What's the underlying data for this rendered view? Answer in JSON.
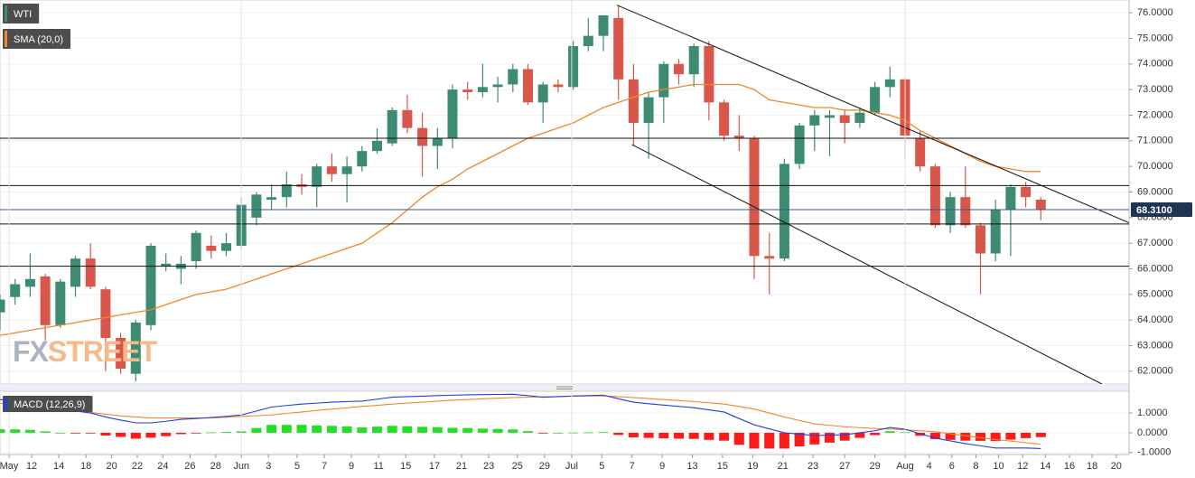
{
  "chart_data": [
    {
      "type": "candlestick",
      "ylim": [
        61.5,
        76.5
      ],
      "xlim": [
        0,
        74.85
      ],
      "yticks": [
        {
          "value": 62,
          "label": "62.0000"
        },
        {
          "value": 63,
          "label": "63.0000"
        },
        {
          "value": 64,
          "label": "64.0000"
        },
        {
          "value": 65,
          "label": "65.0000"
        },
        {
          "value": 66,
          "label": "66.0000"
        },
        {
          "value": 67,
          "label": "67.0000"
        },
        {
          "value": 68,
          "label": "68.0000"
        },
        {
          "value": 69,
          "label": "69.0000"
        },
        {
          "value": 70,
          "label": "70.0000"
        },
        {
          "value": 71,
          "label": "71.0000"
        },
        {
          "value": 72,
          "label": "72.0000"
        },
        {
          "value": 73,
          "label": "73.0000"
        },
        {
          "value": 74,
          "label": "74.0000"
        },
        {
          "value": 75,
          "label": "75.0000"
        },
        {
          "value": 76,
          "label": "76.0000"
        }
      ],
      "x": [
        0,
        1,
        2,
        3,
        4,
        5,
        6,
        7,
        8,
        9,
        10,
        11,
        12,
        13,
        14,
        15,
        16,
        17,
        18,
        19,
        20,
        21,
        22,
        23,
        24,
        25,
        26,
        27,
        28,
        29,
        30,
        31,
        32,
        33,
        34,
        35,
        36,
        37,
        38,
        39,
        40,
        41,
        42,
        43,
        44,
        45,
        46,
        47,
        48,
        49,
        50,
        51,
        52,
        53,
        54,
        55,
        56,
        57,
        58,
        59,
        60,
        61,
        62,
        63,
        64,
        65,
        66,
        67,
        68,
        69
      ],
      "series": [
        {
          "name": "WTI",
          "color": "#3d8b73",
          "up_color": "#3d8b73",
          "down_color": "#d9574a",
          "open": [
            64.3,
            64.9,
            65.3,
            65.7,
            63.8,
            65.3,
            66.4,
            65.2,
            63.3,
            61.9,
            63.8,
            66.1,
            66.0,
            66.3,
            66.9,
            66.7,
            66.9,
            68.0,
            68.7,
            68.8,
            69.3,
            69.2,
            70.0,
            69.7,
            70.0,
            70.6,
            70.9,
            72.2,
            71.5,
            70.8,
            71.1,
            73.0,
            72.9,
            73.1,
            73.2,
            73.8,
            72.5,
            73.2,
            73.1,
            74.7,
            75.1,
            75.8,
            73.4,
            71.7,
            72.7,
            74.0,
            73.6,
            74.7,
            72.5,
            71.2,
            71.1,
            66.5,
            66.4,
            70.1,
            71.6,
            71.9,
            72.0,
            71.7,
            72.1,
            73.1,
            73.4,
            71.1,
            70.0,
            67.7,
            68.8,
            67.7,
            66.6,
            68.3,
            69.2,
            68.7
          ],
          "high": [
            65.0,
            65.6,
            66.6,
            65.8,
            65.6,
            66.5,
            67.0,
            65.3,
            63.5,
            64.0,
            67.0,
            66.6,
            66.5,
            67.5,
            67.3,
            67.4,
            68.8,
            69.0,
            69.3,
            69.8,
            69.7,
            70.1,
            70.5,
            70.4,
            70.8,
            71.5,
            72.3,
            72.8,
            72.1,
            71.5,
            73.2,
            73.3,
            74.0,
            73.5,
            74.0,
            74.0,
            73.3,
            73.4,
            74.9,
            75.8,
            75.9,
            76.3,
            74.0,
            72.9,
            74.1,
            74.2,
            74.8,
            74.9,
            72.6,
            72.0,
            71.2,
            67.4,
            70.3,
            71.7,
            72.2,
            72.2,
            72.2,
            72.3,
            73.3,
            73.9,
            73.5,
            71.4,
            70.1,
            69.0,
            70.0,
            67.8,
            68.7,
            69.3,
            69.4,
            68.8
          ],
          "low": [
            63.6,
            64.6,
            64.9,
            63.2,
            63.7,
            64.9,
            65.2,
            62.0,
            61.9,
            61.6,
            63.6,
            65.9,
            65.4,
            66.0,
            66.4,
            66.5,
            66.8,
            67.7,
            68.3,
            68.4,
            68.9,
            68.4,
            69.4,
            68.6,
            69.8,
            70.5,
            70.8,
            71.3,
            69.6,
            69.9,
            70.7,
            72.6,
            72.7,
            72.5,
            72.9,
            72.4,
            71.7,
            72.9,
            73.0,
            74.5,
            74.5,
            72.6,
            70.8,
            70.3,
            71.7,
            73.2,
            73.1,
            71.8,
            71.0,
            70.6,
            65.6,
            65.0,
            66.3,
            69.9,
            70.6,
            70.4,
            70.9,
            71.5,
            72.0,
            72.7,
            70.3,
            69.8,
            67.6,
            67.4,
            67.6,
            65.0,
            66.3,
            66.5,
            68.4,
            67.9
          ],
          "close": [
            64.8,
            65.4,
            65.6,
            63.8,
            65.5,
            66.4,
            65.3,
            63.3,
            62.1,
            63.9,
            66.9,
            66.2,
            66.2,
            67.4,
            66.7,
            67.0,
            68.5,
            68.9,
            68.8,
            69.3,
            69.2,
            70.0,
            69.7,
            70.0,
            70.6,
            71.0,
            72.2,
            71.5,
            70.8,
            71.1,
            73.0,
            72.9,
            73.1,
            73.2,
            73.8,
            72.5,
            73.2,
            73.1,
            74.7,
            75.1,
            75.9,
            73.4,
            71.7,
            72.7,
            74.0,
            73.6,
            74.7,
            72.5,
            71.2,
            71.1,
            66.5,
            66.4,
            70.1,
            71.6,
            72.0,
            72.0,
            71.7,
            72.1,
            73.1,
            73.4,
            71.2,
            70.0,
            67.7,
            68.8,
            67.7,
            66.6,
            68.3,
            69.2,
            68.8,
            68.3
          ]
        }
      ],
      "overlays": [
        {
          "name": "SMA (20,0)",
          "color": "#f0862a",
          "values": [
            63.4,
            63.5,
            63.6,
            63.7,
            63.8,
            63.9,
            64.0,
            64.1,
            64.2,
            64.3,
            64.4,
            64.6,
            64.8,
            65.0,
            65.1,
            65.2,
            65.4,
            65.6,
            65.8,
            66.0,
            66.2,
            66.4,
            66.6,
            66.8,
            67.0,
            67.4,
            67.8,
            68.3,
            68.8,
            69.2,
            69.5,
            69.9,
            70.2,
            70.5,
            70.8,
            71.1,
            71.3,
            71.5,
            71.7,
            72.0,
            72.3,
            72.5,
            72.7,
            72.9,
            73.0,
            73.1,
            73.2,
            73.2,
            73.2,
            73.2,
            73.0,
            72.6,
            72.5,
            72.4,
            72.3,
            72.3,
            72.2,
            72.2,
            72.1,
            72.0,
            71.8,
            71.4,
            71.1,
            70.8,
            70.5,
            70.2,
            70.0,
            69.9,
            69.8,
            69.8
          ]
        }
      ],
      "levels": [
        71.1,
        69.25,
        67.75,
        66.1
      ],
      "trendlines": [
        {
          "x": [
            40.9,
            74.85
          ],
          "y": [
            76.3,
            67.8
          ]
        },
        {
          "x": [
            41.9,
            73.05
          ],
          "y": [
            70.85,
            61.5
          ]
        }
      ],
      "last_price": {
        "value": 68.31,
        "label": "68.3100"
      },
      "watermark": {
        "left": "FX",
        "right": "STREET"
      }
    },
    {
      "type": "macd",
      "legend": "MACD (12,26,9)",
      "legend_color": "#1f3fe0",
      "ylim": [
        -1.1,
        2.1
      ],
      "xlim": [
        0,
        74.85
      ],
      "yticks": [
        {
          "value": 1,
          "label": "1.0000"
        },
        {
          "value": 0,
          "label": "0.0000"
        },
        {
          "value": -1,
          "label": "-1.0000"
        }
      ],
      "x": [
        0,
        1,
        2,
        3,
        4,
        5,
        6,
        7,
        8,
        9,
        10,
        11,
        12,
        13,
        14,
        15,
        16,
        17,
        18,
        19,
        20,
        21,
        22,
        23,
        24,
        25,
        26,
        27,
        28,
        29,
        30,
        31,
        32,
        33,
        34,
        35,
        36,
        37,
        38,
        39,
        40,
        41,
        42,
        43,
        44,
        45,
        46,
        47,
        48,
        49,
        50,
        51,
        52,
        53,
        54,
        55,
        56,
        57,
        58,
        59,
        60,
        61,
        62,
        63,
        64,
        65,
        66,
        67,
        68,
        69
      ],
      "macd": {
        "color": "#1f3fe0",
        "values": [
          1.68,
          1.6,
          1.5,
          1.35,
          1.2,
          1.1,
          1.0,
          0.8,
          0.64,
          0.5,
          0.5,
          0.58,
          0.68,
          0.72,
          0.77,
          0.83,
          0.9,
          1.1,
          1.3,
          1.38,
          1.45,
          1.5,
          1.55,
          1.58,
          1.6,
          1.7,
          1.8,
          1.83,
          1.85,
          1.88,
          1.9,
          1.92,
          1.93,
          1.94,
          1.95,
          1.88,
          1.8,
          1.83,
          1.86,
          1.88,
          1.9,
          1.72,
          1.55,
          1.47,
          1.4,
          1.33,
          1.27,
          1.16,
          1.05,
          0.72,
          0.4,
          0.2,
          0.0,
          -0.07,
          -0.14,
          -0.12,
          -0.1,
          0.0,
          0.1,
          0.27,
          0.18,
          -0.05,
          -0.27,
          -0.41,
          -0.55,
          -0.66,
          -0.77,
          -0.77,
          -0.77,
          -0.8
        ]
      },
      "signal": {
        "color": "#f0862a",
        "values": [
          1.5,
          1.43,
          1.35,
          1.28,
          1.2,
          1.11,
          1.03,
          0.94,
          0.85,
          0.8,
          0.75,
          0.75,
          0.75,
          0.75,
          0.75,
          0.79,
          0.83,
          0.86,
          0.9,
          0.98,
          1.05,
          1.13,
          1.2,
          1.26,
          1.33,
          1.39,
          1.45,
          1.5,
          1.55,
          1.6,
          1.65,
          1.68,
          1.72,
          1.75,
          1.78,
          1.8,
          1.82,
          1.83,
          1.85,
          1.86,
          1.87,
          1.83,
          1.78,
          1.73,
          1.68,
          1.63,
          1.58,
          1.52,
          1.45,
          1.33,
          1.2,
          1.0,
          0.8,
          0.62,
          0.45,
          0.38,
          0.3,
          0.26,
          0.22,
          0.19,
          0.15,
          0.1,
          0.05,
          -0.05,
          -0.15,
          -0.25,
          -0.35,
          -0.42,
          -0.5,
          -0.58
        ]
      },
      "histogram": {
        "up_color": "#22e022",
        "down_color": "#ff1a1a",
        "values": [
          0.18,
          0.17,
          0.15,
          0.07,
          0,
          -0.01,
          -0.03,
          -0.14,
          -0.21,
          -0.3,
          -0.25,
          -0.17,
          -0.07,
          -0.03,
          0.02,
          0.04,
          0.07,
          0.24,
          0.4,
          0.4,
          0.4,
          0.37,
          0.35,
          0.32,
          0.27,
          0.31,
          0.35,
          0.33,
          0.3,
          0.28,
          0.25,
          0.24,
          0.21,
          0.19,
          0.17,
          0.08,
          -0.02,
          0,
          0.01,
          0.02,
          0.03,
          -0.11,
          -0.23,
          -0.26,
          -0.28,
          -0.3,
          -0.31,
          -0.36,
          -0.4,
          -0.61,
          -0.8,
          -0.8,
          -0.8,
          -0.69,
          -0.59,
          -0.5,
          -0.4,
          -0.26,
          -0.12,
          0.08,
          0.03,
          -0.15,
          -0.32,
          -0.36,
          -0.4,
          -0.41,
          -0.42,
          -0.35,
          -0.27,
          -0.22
        ]
      },
      "xticks": [
        {
          "value": 0.6,
          "label": "May"
        },
        {
          "value": 2.1,
          "label": "12"
        },
        {
          "value": 3.9,
          "label": "14"
        },
        {
          "value": 5.7,
          "label": "18"
        },
        {
          "value": 7.4,
          "label": "20"
        },
        {
          "value": 9.1,
          "label": "22"
        },
        {
          "value": 10.8,
          "label": "24"
        },
        {
          "value": 12.6,
          "label": "26"
        },
        {
          "value": 14.3,
          "label": "28"
        },
        {
          "value": 16,
          "label": "Jun"
        },
        {
          "value": 17.8,
          "label": "3"
        },
        {
          "value": 19.7,
          "label": "5"
        },
        {
          "value": 21.5,
          "label": "7"
        },
        {
          "value": 23.3,
          "label": "9"
        },
        {
          "value": 25.1,
          "label": "11"
        },
        {
          "value": 26.9,
          "label": "15"
        },
        {
          "value": 28.8,
          "label": "17"
        },
        {
          "value": 30.6,
          "label": "21"
        },
        {
          "value": 32.4,
          "label": "23"
        },
        {
          "value": 34.3,
          "label": "25"
        },
        {
          "value": 36.1,
          "label": "29"
        },
        {
          "value": 37.9,
          "label": "Jul"
        },
        {
          "value": 39.9,
          "label": "5"
        },
        {
          "value": 41.9,
          "label": "7"
        },
        {
          "value": 43.9,
          "label": "9"
        },
        {
          "value": 45.9,
          "label": "13"
        },
        {
          "value": 47.9,
          "label": "15"
        },
        {
          "value": 49.9,
          "label": "19"
        },
        {
          "value": 51.9,
          "label": "21"
        },
        {
          "value": 53.9,
          "label": "23"
        },
        {
          "value": 56,
          "label": "27"
        },
        {
          "value": 58,
          "label": "29"
        },
        {
          "value": 60,
          "label": "Aug"
        },
        {
          "value": 61.6,
          "label": "4"
        },
        {
          "value": 63.1,
          "label": "6"
        },
        {
          "value": 64.7,
          "label": "8"
        },
        {
          "value": 66.2,
          "label": "10"
        },
        {
          "value": 67.8,
          "label": "12"
        },
        {
          "value": 69.3,
          "label": "14"
        },
        {
          "value": 70.9,
          "label": "16"
        },
        {
          "value": 72.4,
          "label": "18"
        },
        {
          "value": 74,
          "label": "20"
        }
      ]
    }
  ]
}
